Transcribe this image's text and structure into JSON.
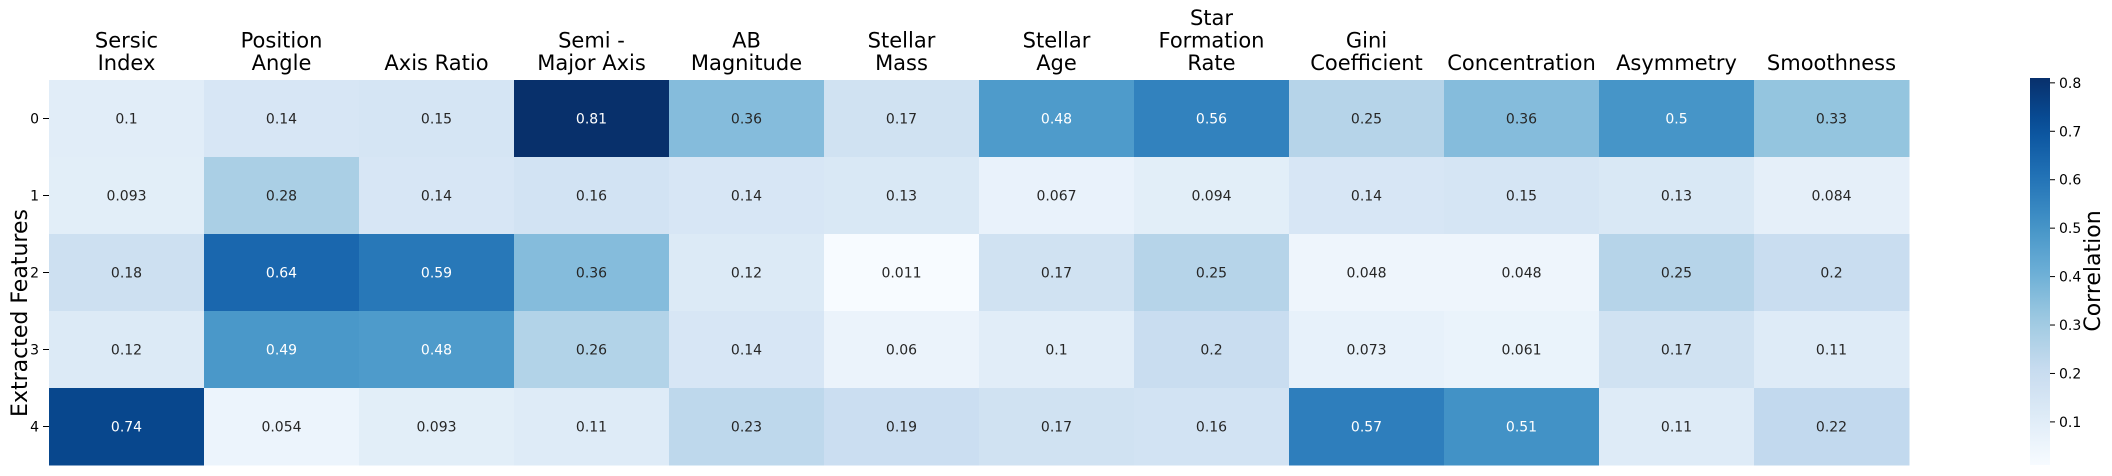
{
  "chart_data": {
    "type": "heatmap",
    "columns": [
      [
        "Sersic",
        "Index"
      ],
      [
        "Position",
        "Angle"
      ],
      [
        "Axis Ratio"
      ],
      [
        "Semi -",
        "Major Axis"
      ],
      [
        "AB",
        "Magnitude"
      ],
      [
        "Stellar",
        "Mass"
      ],
      [
        "Stellar",
        "Age"
      ],
      [
        "Star",
        "Formation",
        "Rate"
      ],
      [
        "Gini",
        "Coefficient"
      ],
      [
        "Concentration"
      ],
      [
        "Asymmetry"
      ],
      [
        "Smoothness"
      ]
    ],
    "rows": [
      "0",
      "1",
      "2",
      "3",
      "4"
    ],
    "ylabel": "Extracted Features",
    "values": [
      [
        "0.1",
        "0.14",
        "0.15",
        "0.81",
        "0.36",
        "0.17",
        "0.48",
        "0.56",
        "0.25",
        "0.36",
        "0.5",
        "0.33"
      ],
      [
        "0.093",
        "0.28",
        "0.14",
        "0.16",
        "0.14",
        "0.13",
        "0.067",
        "0.094",
        "0.14",
        "0.15",
        "0.13",
        "0.084"
      ],
      [
        "0.18",
        "0.64",
        "0.59",
        "0.36",
        "0.12",
        "0.011",
        "0.17",
        "0.25",
        "0.048",
        "0.048",
        "0.25",
        "0.2"
      ],
      [
        "0.12",
        "0.49",
        "0.48",
        "0.26",
        "0.14",
        "0.06",
        "0.1",
        "0.2",
        "0.073",
        "0.061",
        "0.17",
        "0.11"
      ],
      [
        "0.74",
        "0.054",
        "0.093",
        "0.11",
        "0.23",
        "0.19",
        "0.17",
        "0.16",
        "0.57",
        "0.51",
        "0.11",
        "0.22"
      ]
    ],
    "colorbar": {
      "label": "Correlation",
      "ticks": [
        "0.1",
        "0.2",
        "0.3",
        "0.4",
        "0.5",
        "0.6",
        "0.7",
        "0.8"
      ],
      "range": [
        0.011,
        0.81
      ],
      "colormap": "Blues"
    }
  }
}
